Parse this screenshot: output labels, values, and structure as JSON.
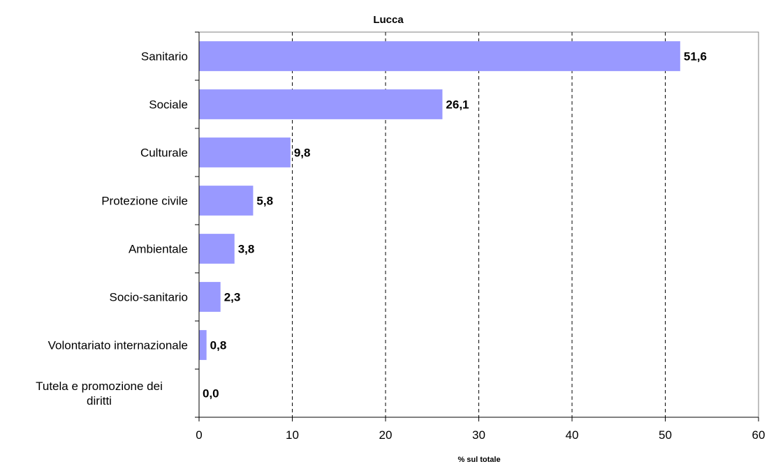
{
  "chart_data": {
    "type": "bar",
    "orientation": "horizontal",
    "title": "Lucca",
    "xlabel": "% sul totale",
    "ylabel": "",
    "categories": [
      "Sanitario",
      "Sociale",
      "Culturale",
      "Protezione civile",
      "Ambientale",
      "Socio-sanitario",
      "Volontariato internazionale",
      "Tutela e promozione dei diritti"
    ],
    "values": [
      51.6,
      26.1,
      9.8,
      5.8,
      3.8,
      2.3,
      0.8,
      0.0
    ],
    "value_labels": [
      "51,6",
      "26,1",
      "9,8",
      "5,8",
      "3,8",
      "2,3",
      "0,8",
      "0,0"
    ],
    "xlim": [
      0,
      60
    ],
    "xticks": [
      0,
      10,
      20,
      30,
      40,
      50,
      60
    ],
    "grid": "vertical-dashed",
    "legend": "none",
    "bar_color": "#9999ff"
  }
}
